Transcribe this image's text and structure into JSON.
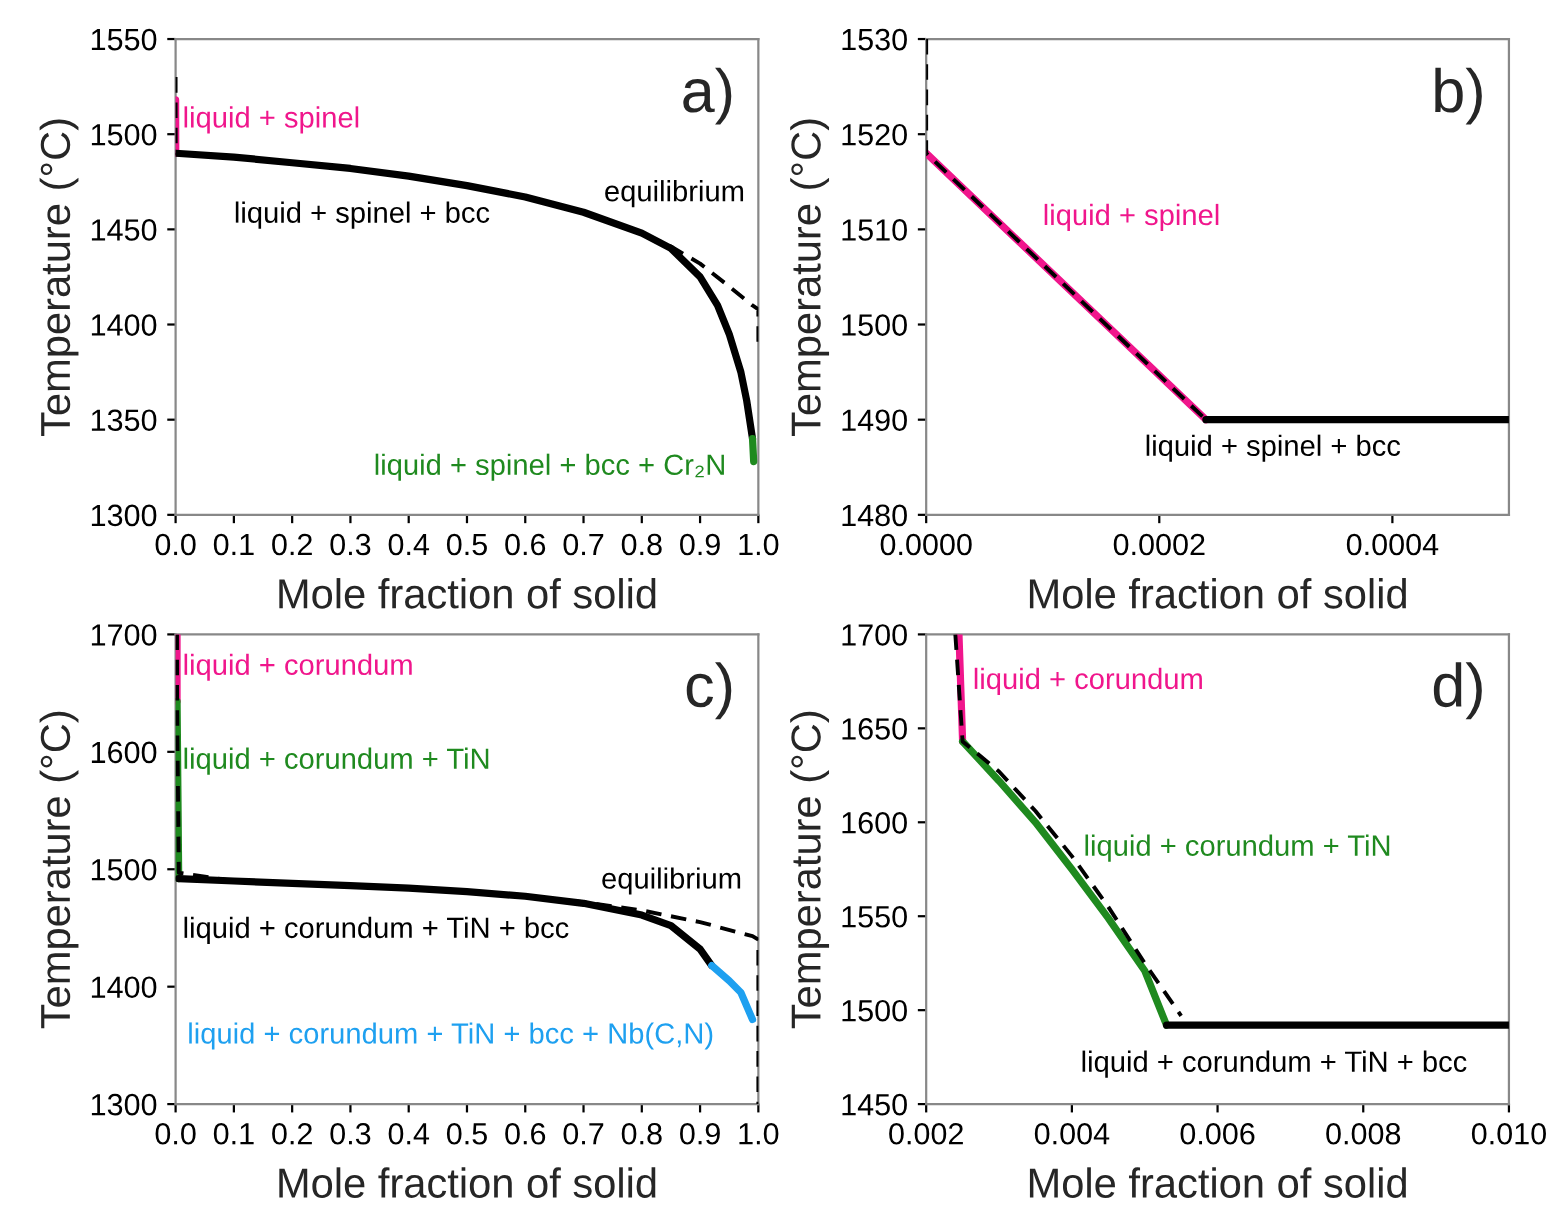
{
  "chart_data": [
    {
      "type": "line",
      "title": "a)",
      "xlabel": "Mole fraction of solid",
      "ylabel": "Temperature (°C)",
      "xlim": [
        0,
        1
      ],
      "ylim": [
        1300,
        1550
      ],
      "xticks": [
        {
          "value": 0,
          "label": "0.0"
        },
        {
          "value": 0.1,
          "label": "0.1"
        },
        {
          "value": 0.2,
          "label": "0.2"
        },
        {
          "value": 0.3,
          "label": "0.3"
        },
        {
          "value": 0.4,
          "label": "0.4"
        },
        {
          "value": 0.5,
          "label": "0.5"
        },
        {
          "value": 0.6,
          "label": "0.6"
        },
        {
          "value": 0.7,
          "label": "0.7"
        },
        {
          "value": 0.8,
          "label": "0.8"
        },
        {
          "value": 0.9,
          "label": "0.9"
        },
        {
          "value": 1,
          "label": "1.0"
        }
      ],
      "yticks": [
        1300,
        1350,
        1400,
        1450,
        1500,
        1550
      ],
      "series": [
        {
          "name": "liquid + spinel",
          "color": "#f0168c",
          "x": [
            0,
            0.00024
          ],
          "values": [
            1518,
            1490
          ]
        },
        {
          "name": "liquid + spinel + bcc",
          "color": "#000000",
          "x": [
            0.00024,
            0.1,
            0.2,
            0.3,
            0.4,
            0.5,
            0.6,
            0.7,
            0.8,
            0.85,
            0.9,
            0.93,
            0.95,
            0.97,
            0.98,
            0.99
          ],
          "values": [
            1490,
            1488,
            1485,
            1482,
            1478,
            1473,
            1467,
            1459,
            1448,
            1440,
            1425,
            1410,
            1395,
            1375,
            1360,
            1340
          ]
        },
        {
          "name": "liquid + spinel + bcc + Cr₂N",
          "color": "#1f8a1f",
          "x": [
            0.99,
            0.992
          ],
          "values": [
            1340,
            1328
          ]
        },
        {
          "name": "equilibrium",
          "color": "#000000",
          "line_style": "dashed",
          "x": [
            0,
            0,
            0.00024,
            0.1,
            0.2,
            0.3,
            0.4,
            0.5,
            0.6,
            0.7,
            0.8,
            0.85,
            0.9,
            0.95,
            0.99,
            1,
            1
          ],
          "values": [
            1530,
            1518,
            1490,
            1488,
            1485,
            1482,
            1478,
            1473,
            1467,
            1459,
            1448,
            1441,
            1432,
            1420,
            1410,
            1408,
            1390
          ]
        }
      ]
    },
    {
      "type": "line",
      "title": "b)",
      "xlabel": "Mole fraction of solid",
      "ylabel": "Temperature (°C)",
      "xlim": [
        0,
        0.0005
      ],
      "ylim": [
        1480,
        1530
      ],
      "xticks": [
        {
          "value": 0,
          "label": "0.0000"
        },
        {
          "value": 0.0002,
          "label": "0.0002"
        },
        {
          "value": 0.0004,
          "label": "0.0004"
        }
      ],
      "yticks": [
        1480,
        1490,
        1500,
        1510,
        1520,
        1530
      ],
      "series": [
        {
          "name": "liquid + spinel",
          "color": "#f0168c",
          "x": [
            0,
            0.00024
          ],
          "values": [
            1518,
            1490
          ]
        },
        {
          "name": "liquid + spinel + bcc",
          "color": "#000000",
          "x": [
            0.00024,
            0.0005
          ],
          "values": [
            1490,
            1490
          ]
        },
        {
          "color": "#000000",
          "line_style": "dashed",
          "x": [
            0,
            0,
            0.00024
          ],
          "values": [
            1530,
            1518,
            1490
          ]
        }
      ]
    },
    {
      "type": "line",
      "title": "c)",
      "xlabel": "Mole fraction of solid",
      "ylabel": "Temperature (°C)",
      "xlim": [
        0,
        1
      ],
      "ylim": [
        1300,
        1700
      ],
      "xticks": [
        {
          "value": 0,
          "label": "0.0"
        },
        {
          "value": 0.1,
          "label": "0.1"
        },
        {
          "value": 0.2,
          "label": "0.2"
        },
        {
          "value": 0.3,
          "label": "0.3"
        },
        {
          "value": 0.4,
          "label": "0.4"
        },
        {
          "value": 0.5,
          "label": "0.5"
        },
        {
          "value": 0.6,
          "label": "0.6"
        },
        {
          "value": 0.7,
          "label": "0.7"
        },
        {
          "value": 0.8,
          "label": "0.8"
        },
        {
          "value": 0.9,
          "label": "0.9"
        },
        {
          "value": 1,
          "label": "1.0"
        }
      ],
      "yticks": [
        1300,
        1400,
        1500,
        1600,
        1700
      ],
      "series": [
        {
          "name": "liquid + corundum",
          "color": "#f0168c",
          "x": [
            0.00245,
            0.0025
          ],
          "values": [
            1700,
            1643
          ]
        },
        {
          "name": "liquid + corundum + TiN",
          "color": "#1f8a1f",
          "x": [
            0.0025,
            0.0053
          ],
          "values": [
            1643,
            1492
          ]
        },
        {
          "name": "liquid + corundum + TiN + bcc",
          "color": "#000000",
          "x": [
            0.0053,
            0.1,
            0.2,
            0.3,
            0.4,
            0.5,
            0.6,
            0.7,
            0.8,
            0.85,
            0.9,
            0.92
          ],
          "values": [
            1492,
            1490,
            1488,
            1486,
            1484,
            1481,
            1477,
            1471,
            1461,
            1452,
            1432,
            1418
          ]
        },
        {
          "name": "liquid + corundum + TiN + bcc + Nb(C,N)",
          "color": "#1ea0f0",
          "x": [
            0.92,
            0.95,
            0.97,
            0.99
          ],
          "values": [
            1418,
            1405,
            1395,
            1372
          ]
        },
        {
          "name": "equilibrium",
          "color": "#000000",
          "line_style": "dashed",
          "x": [
            0.0024,
            0.0025,
            0.0055,
            0.1,
            0.2,
            0.3,
            0.4,
            0.5,
            0.6,
            0.7,
            0.8,
            0.9,
            0.99,
            1,
            1
          ],
          "values": [
            1700,
            1643,
            1497,
            1490,
            1488,
            1486,
            1484,
            1481,
            1477,
            1472,
            1465,
            1455,
            1443,
            1440,
            1300
          ]
        }
      ]
    },
    {
      "type": "line",
      "title": "d)",
      "xlabel": "Mole fraction of solid",
      "ylabel": "Temperature (°C)",
      "xlim": [
        0.002,
        0.01
      ],
      "ylim": [
        1450,
        1700
      ],
      "xticks": [
        {
          "value": 0.002,
          "label": "0.002"
        },
        {
          "value": 0.004,
          "label": "0.004"
        },
        {
          "value": 0.006,
          "label": "0.006"
        },
        {
          "value": 0.008,
          "label": "0.008"
        },
        {
          "value": 0.01,
          "label": "0.010"
        }
      ],
      "yticks": [
        1450,
        1500,
        1550,
        1600,
        1650,
        1700
      ],
      "series": [
        {
          "name": "liquid + corundum",
          "color": "#f0168c",
          "x": [
            0.00245,
            0.0025
          ],
          "values": [
            1700,
            1643
          ]
        },
        {
          "name": "liquid + corundum + TiN",
          "color": "#1f8a1f",
          "x": [
            0.0025,
            0.003,
            0.0035,
            0.004,
            0.0045,
            0.005,
            0.0053
          ],
          "values": [
            1643,
            1622,
            1600,
            1575,
            1549,
            1521,
            1492
          ]
        },
        {
          "name": "liquid + corundum + TiN + bcc",
          "color": "#000000",
          "x": [
            0.0053,
            0.01
          ],
          "values": [
            1492,
            1492
          ]
        },
        {
          "color": "#000000",
          "line_style": "dashed",
          "x": [
            0.0024,
            0.0025,
            0.003,
            0.0035,
            0.004,
            0.0045,
            0.005,
            0.0055
          ],
          "values": [
            1700,
            1643,
            1627,
            1606,
            1582,
            1555,
            1525,
            1497
          ]
        }
      ]
    }
  ]
}
